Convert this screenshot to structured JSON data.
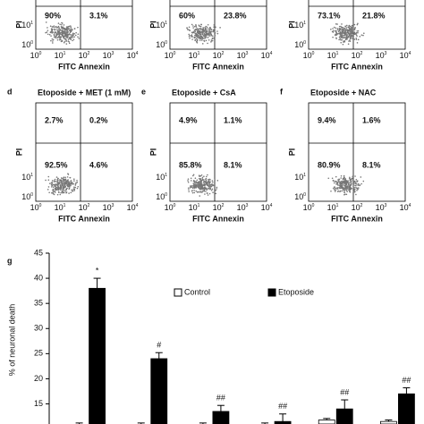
{
  "panels": [
    {
      "quadrants": [
        null,
        null,
        "90%",
        "3.1%"
      ],
      "xlabel": "FITC Annexin",
      "ylabel": "PI"
    },
    {
      "quadrants": [
        null,
        null,
        "60%",
        "23.8%"
      ],
      "xlabel": "FITC Annexin",
      "ylabel": "PI"
    },
    {
      "quadrants": [
        null,
        null,
        "73.1%",
        "21.8%"
      ],
      "xlabel": "FITC Annexin",
      "ylabel": "PI"
    },
    {
      "label": "d",
      "title": "Etoposide + MET (1 mM)",
      "quadrants": [
        "2.7%",
        "0.2%",
        "92.5%",
        "4.6%"
      ],
      "xlabel": "FITC Annexin",
      "ylabel": "PI"
    },
    {
      "label": "e",
      "title": "Etoposide + CsA",
      "quadrants": [
        "4.9%",
        "1.1%",
        "85.8%",
        "8.1%"
      ],
      "xlabel": "FITC Annexin",
      "ylabel": "PI"
    },
    {
      "label": "f",
      "title": "Etoposide + NAC",
      "quadrants": [
        "9.4%",
        "1.6%",
        "80.9%",
        "8.1%"
      ],
      "xlabel": "FITC Annexin",
      "ylabel": "PI"
    }
  ],
  "log_ticks": {
    "base": "10",
    "exponents": [
      "0",
      "1",
      "2",
      "3",
      "4"
    ]
  },
  "chart_data": {
    "type": "bar",
    "panel_label": "g",
    "ylabel": "% of neuronal death",
    "categories": [
      null,
      null,
      null,
      null,
      null,
      null
    ],
    "series": [
      {
        "name": "Control",
        "color": "#ffffff",
        "values": [
          11,
          11,
          11,
          11,
          11.8,
          11.5
        ],
        "errors": [
          0.2,
          0.2,
          0.2,
          0.2,
          0.3,
          0.3
        ]
      },
      {
        "name": "Etoposide",
        "color": "#000000",
        "values": [
          38,
          24,
          13.5,
          11.5,
          14,
          17
        ],
        "errors": [
          2,
          1.2,
          1.2,
          1.5,
          1.8,
          1.2
        ]
      }
    ],
    "annotations": [
      "*",
      "#",
      "##",
      "##",
      "##",
      "##"
    ],
    "ylim": [
      11,
      45
    ],
    "yticks": [
      15,
      20,
      25,
      30,
      35,
      40,
      45
    ]
  }
}
